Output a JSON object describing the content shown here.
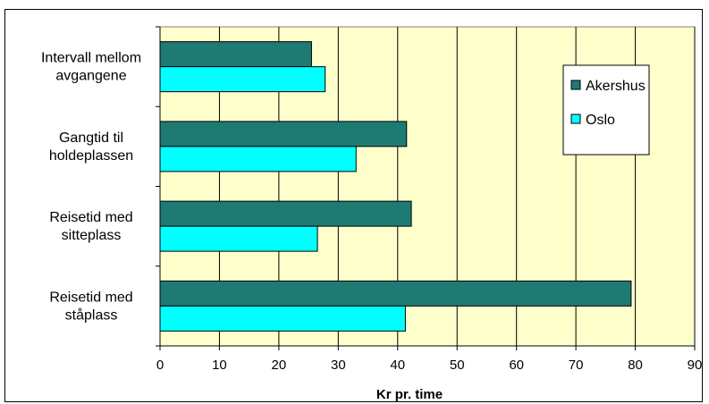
{
  "chart_data": {
    "type": "bar",
    "orientation": "horizontal",
    "categories": [
      [
        "Intervall mellom",
        "avgangene"
      ],
      [
        "Gangtid til",
        "holdeplassen"
      ],
      [
        "Reisetid med",
        "sitteplass"
      ],
      [
        "Reisetid med",
        "ståplass"
      ]
    ],
    "series": [
      {
        "name": "Akershus",
        "values": [
          25.5,
          41.5,
          42.3,
          79.3
        ],
        "color": "#1f7a74"
      },
      {
        "name": "Oslo",
        "values": [
          27.8,
          33.0,
          26.5,
          41.3
        ],
        "color": "#00ffff"
      }
    ],
    "xlabel": "Kr pr. time",
    "ylabel": "",
    "xlim": [
      0,
      90
    ],
    "xticks": [
      0,
      10,
      20,
      30,
      40,
      50,
      60,
      70,
      80,
      90
    ],
    "grid": true,
    "plot_background": "#ffffcc",
    "legend_position": "top-right"
  }
}
